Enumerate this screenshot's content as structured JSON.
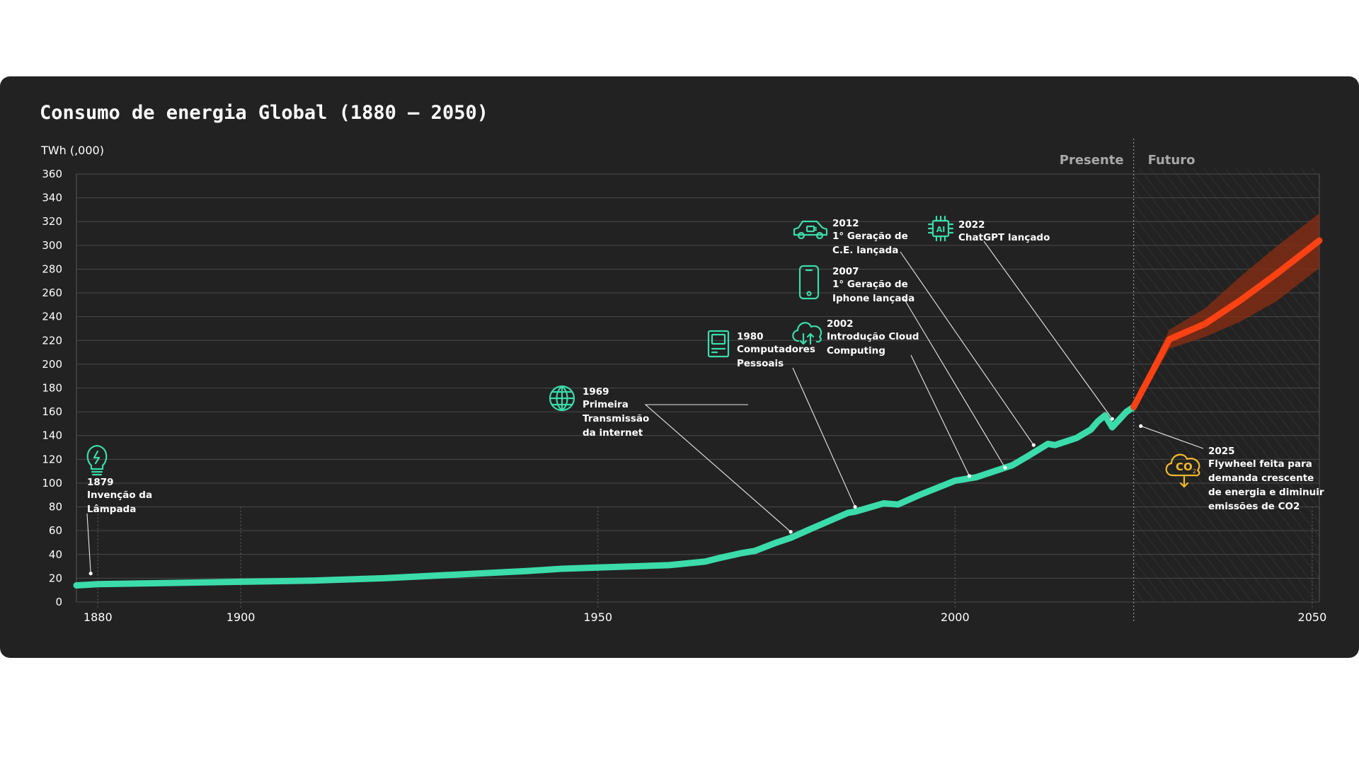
{
  "page": {
    "title": "Consumo de energia Global (1880 – 2050)"
  },
  "chart_data": {
    "type": "line",
    "title": "Consumo de energia Global (1880 – 2050)",
    "ylabel": "TWh (,000)",
    "xlabel": "",
    "xlim": [
      1877,
      2051
    ],
    "ylim": [
      0,
      360
    ],
    "x_ticks": [
      1880,
      1900,
      1950,
      2000,
      2050
    ],
    "y_ticks": [
      0,
      20,
      40,
      60,
      80,
      100,
      120,
      140,
      160,
      180,
      200,
      220,
      240,
      260,
      280,
      300,
      320,
      340,
      360
    ],
    "grid": true,
    "regions": {
      "present_label": "Presente",
      "future_label": "Futuro",
      "present_year": 2025
    },
    "colors": {
      "historical": "#3bdcaa",
      "forecast": "#ff4214",
      "band": "#8c2e12",
      "background": "#222222",
      "co2_icon": "#f2b82c"
    },
    "series": [
      {
        "key": "historical",
        "x": [
          1877,
          1880,
          1900,
          1910,
          1920,
          1930,
          1940,
          1945,
          1950,
          1955,
          1960,
          1965,
          1967,
          1970,
          1972,
          1975,
          1977,
          1980,
          1985,
          1986,
          1990,
          1992,
          1995,
          2000,
          2003,
          2005,
          2008,
          2010,
          2013,
          2014,
          2015,
          2017,
          2019,
          2020,
          2021,
          2022,
          2024,
          2025
        ],
        "y": [
          14,
          15,
          17,
          18,
          20,
          23,
          26,
          28,
          29,
          30,
          31,
          34,
          37,
          41,
          43,
          50,
          54,
          62,
          75,
          76,
          83,
          82,
          90,
          102,
          105,
          109,
          115,
          122,
          133,
          132,
          134,
          138,
          145,
          152,
          157,
          147,
          160,
          164
        ]
      },
      {
        "key": "forecast",
        "x": [
          2025,
          2030,
          2035,
          2040,
          2045,
          2051
        ],
        "y": [
          164,
          221,
          234,
          254,
          276,
          304
        ]
      }
    ],
    "forecast_band": {
      "x": [
        2025,
        2030,
        2035,
        2040,
        2045,
        2051
      ],
      "upper": [
        166,
        229,
        247,
        274,
        299,
        327
      ],
      "lower": [
        160,
        213,
        223,
        236,
        253,
        281
      ]
    },
    "annotations": [
      {
        "icon": "lightbulb-icon",
        "year": "1879",
        "lines": [
          "Invenção da",
          "Lâmpada"
        ],
        "target": [
          1879,
          24
        ]
      },
      {
        "icon": "globe-icon",
        "year": "1969",
        "lines": [
          "Primeira",
          "Transmissão",
          "da internet"
        ],
        "target": [
          1977,
          59
        ]
      },
      {
        "icon": "computer-icon",
        "year": "1980",
        "lines": [
          "Computadores",
          "Pessoais"
        ],
        "target": [
          1986,
          80
        ]
      },
      {
        "icon": "cloud-icon",
        "year": "2002",
        "lines": [
          "Introdução Cloud",
          "Computing"
        ],
        "target": [
          2002,
          106
        ]
      },
      {
        "icon": "phone-icon",
        "year": "2007",
        "lines": [
          "1° Geração de",
          "Iphone lançada"
        ],
        "target": [
          2007,
          113
        ]
      },
      {
        "icon": "car-icon",
        "year": "2012",
        "lines": [
          "1° Geração de",
          "C.E. lançada"
        ],
        "target": [
          2011,
          132
        ]
      },
      {
        "icon": "ai-chip-icon",
        "year": "2022",
        "lines": [
          "ChatGPT lançado"
        ],
        "target": [
          2022,
          154
        ]
      },
      {
        "icon": "co2-icon",
        "year": "2025",
        "lines": [
          "Flywheel feita para",
          "demanda crescente",
          "de energia e diminuir",
          "emissões de CO2"
        ],
        "target": [
          2026,
          148
        ]
      }
    ]
  }
}
